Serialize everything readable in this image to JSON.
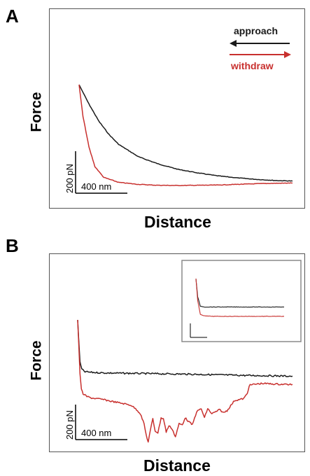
{
  "panels": [
    {
      "letter": "A",
      "ylabel": "Force",
      "xlabel": "Distance",
      "legend": {
        "approach": "approach",
        "withdraw": "withdraw"
      },
      "scalebar": {
        "force": "200 pN",
        "distance": "400 nm"
      }
    },
    {
      "letter": "B",
      "ylabel": "Force",
      "xlabel": "Distance",
      "scalebar": {
        "force": "200 pN",
        "distance": "400 nm"
      },
      "inset": {
        "shown": true
      }
    }
  ],
  "colors": {
    "approach": "#1a1a1a",
    "withdraw": "#c8302e",
    "frame": "#555555",
    "inset_frame": "#8a8a8a"
  },
  "chart_data": [
    {
      "type": "line",
      "panel": "A",
      "x_units": "nm",
      "y_units": "pN",
      "xlim": [
        0,
        2160
      ],
      "ylim": [
        -80,
        760
      ],
      "series": [
        {
          "name": "approach",
          "color": "#1a1a1a",
          "x": [
            0,
            100,
            200,
            300,
            400,
            600,
            800,
            1000,
            1200,
            1400,
            1600,
            1800,
            2000,
            2160
          ],
          "y": [
            452,
            366,
            290,
            232,
            187,
            132,
            100,
            76,
            60,
            47,
            38,
            31,
            26,
            24
          ]
        },
        {
          "name": "withdraw",
          "color": "#c8302e",
          "x": [
            0,
            40,
            100,
            160,
            250,
            400,
            600,
            800,
            1000,
            1200,
            1400,
            1600,
            1800,
            2000,
            2160
          ],
          "y": [
            452,
            310,
            175,
            88,
            40,
            18,
            9,
            5,
            4,
            5,
            6,
            9,
            12,
            14,
            15
          ]
        }
      ]
    },
    {
      "type": "line",
      "panel": "B",
      "x_units": "nm",
      "y_units": "pN",
      "xlim": [
        0,
        2330
      ],
      "ylim": [
        -170,
        760
      ],
      "series": [
        {
          "name": "approach",
          "color": "#1a1a1a",
          "x": [
            0,
            10,
            25,
            45,
            80,
            150,
            300,
            600,
            900,
            1200,
            1500,
            1800,
            2100,
            2330
          ],
          "y": [
            465,
            380,
            255,
            220,
            208,
            205,
            202,
            200,
            198,
            196,
            193,
            190,
            188,
            186
          ]
        },
        {
          "name": "withdraw",
          "color": "#c8302e",
          "x": [
            0,
            10,
            25,
            40,
            60,
            100,
            150,
            200,
            280,
            360,
            440,
            520,
            580,
            640,
            680,
            720,
            745,
            765,
            790,
            815,
            840,
            870,
            905,
            930,
            960,
            990,
            1025,
            1060,
            1100,
            1135,
            1165,
            1205,
            1245,
            1290,
            1340,
            1375,
            1410,
            1455,
            1500,
            1540,
            1580,
            1620,
            1660,
            1700,
            1755,
            1800,
            1840,
            1860,
            1900,
            2000,
            2100,
            2200,
            2330
          ],
          "y": [
            465,
            360,
            200,
            120,
            98,
            85,
            78,
            75,
            70,
            62,
            55,
            48,
            42,
            20,
            0,
            -50,
            -110,
            -140,
            -80,
            -25,
            -85,
            -95,
            -20,
            -25,
            -90,
            -60,
            -75,
            -115,
            -50,
            -55,
            -20,
            -40,
            -55,
            10,
            25,
            -20,
            25,
            0,
            10,
            20,
            5,
            15,
            40,
            65,
            70,
            75,
            100,
            140,
            145,
            150,
            148,
            146,
            145
          ]
        }
      ]
    },
    {
      "type": "line",
      "panel": "B-inset",
      "series": [
        {
          "name": "approach",
          "color": "#1a1a1a",
          "x": [
            0,
            0.02,
            0.05,
            0.1,
            0.2,
            0.4,
            0.6,
            0.8,
            1.0
          ],
          "y": [
            1.0,
            0.55,
            0.32,
            0.3,
            0.3,
            0.3,
            0.3,
            0.3,
            0.3
          ]
        },
        {
          "name": "withdraw",
          "color": "#c8302e",
          "x": [
            0,
            0.02,
            0.05,
            0.1,
            0.2,
            0.4,
            0.6,
            0.8,
            1.0
          ],
          "y": [
            1.0,
            0.45,
            0.12,
            0.08,
            0.07,
            0.07,
            0.07,
            0.07,
            0.07
          ]
        }
      ]
    }
  ]
}
